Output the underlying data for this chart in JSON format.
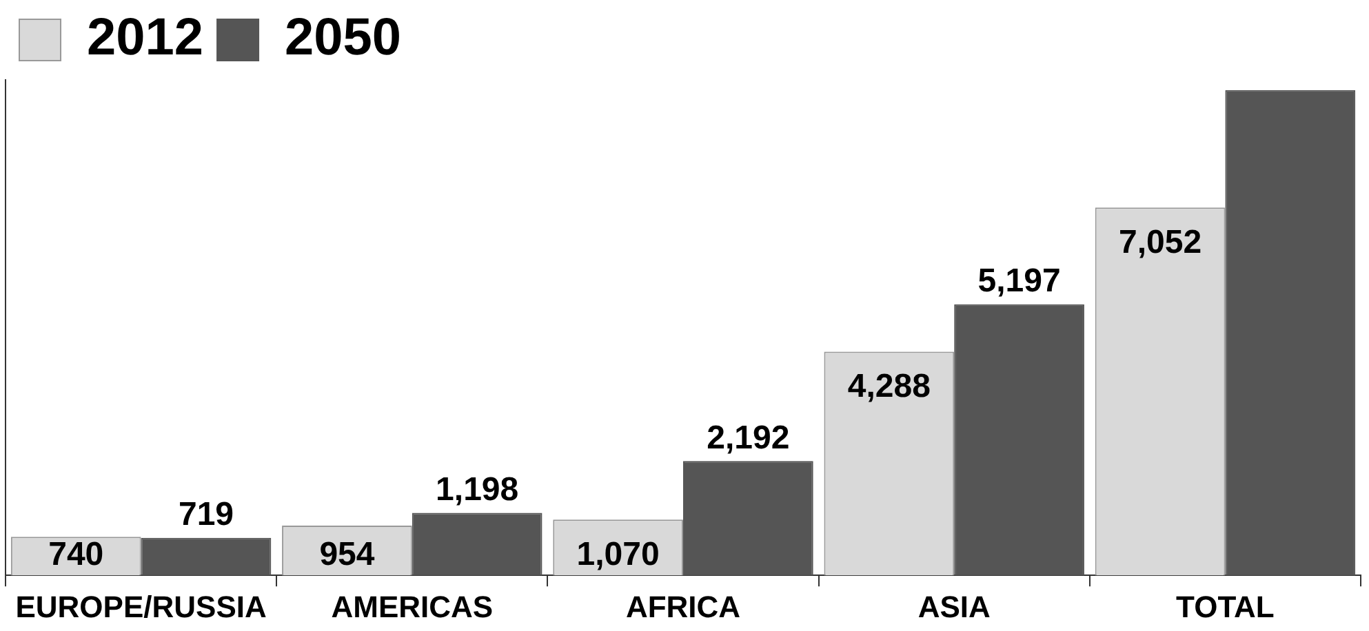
{
  "chart_data": {
    "type": "bar",
    "categories": [
      "EUROPE/RUSSIA",
      "AMERICAS",
      "AFRICA",
      "ASIA",
      "TOTAL"
    ],
    "series": [
      {
        "name": "2012",
        "color": "#d9d9d9",
        "values": [
          740,
          954,
          1070,
          4288,
          7052
        ],
        "value_labels": [
          "740",
          "954",
          "1,070",
          "4,288",
          "7,052"
        ]
      },
      {
        "name": "2050",
        "color": "#555555",
        "values": [
          719,
          1198,
          2192,
          5197,
          9306
        ],
        "value_labels": [
          "719",
          "1,198",
          "2,192",
          "5,197",
          null
        ]
      }
    ],
    "ylim": [
      0,
      9500
    ],
    "grid": false,
    "legend": "top left",
    "tick_labels": "x"
  }
}
